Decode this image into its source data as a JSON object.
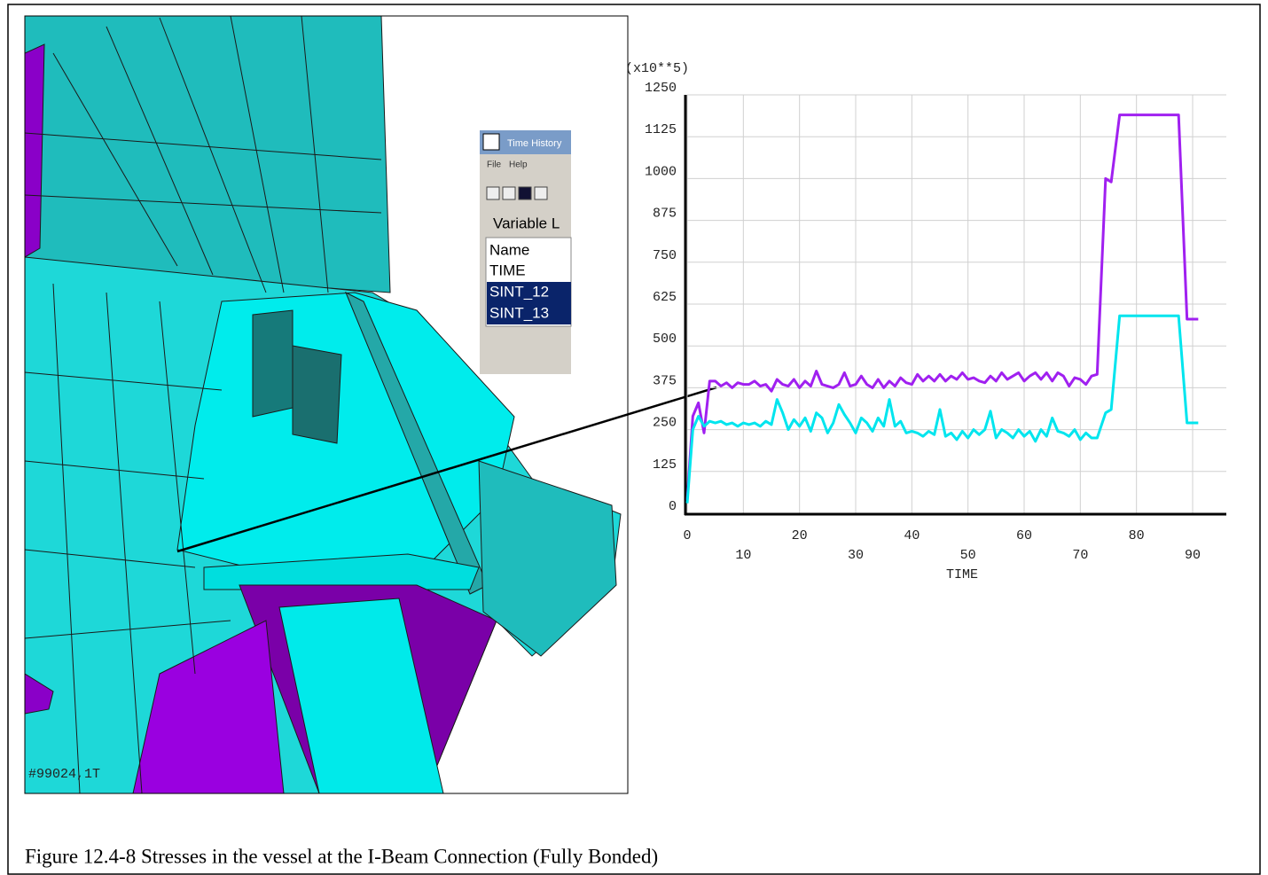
{
  "chart_data": {
    "type": "line",
    "ylabel": "(x10**5)",
    "xlabel": "TIME",
    "xlim": [
      0,
      96
    ],
    "xticks": [
      0,
      10,
      20,
      30,
      40,
      50,
      60,
      70,
      80,
      90
    ],
    "ylim": [
      0,
      1250
    ],
    "yticks": [
      0,
      125,
      250,
      375,
      500,
      625,
      750,
      875,
      1000,
      1125,
      1250
    ],
    "grid": true,
    "x": [
      0,
      1,
      2,
      3,
      4,
      5,
      6,
      7,
      8,
      9,
      10,
      11,
      12,
      13,
      14,
      15,
      16,
      17,
      18,
      19,
      20,
      21,
      22,
      23,
      24,
      25,
      26,
      27,
      28,
      29,
      30,
      31,
      32,
      33,
      34,
      35,
      36,
      37,
      38,
      39,
      40,
      41,
      42,
      43,
      44,
      45,
      46,
      47,
      48,
      49,
      50,
      51,
      52,
      53,
      54,
      55,
      56,
      57,
      58,
      59,
      60,
      61,
      62,
      63,
      64,
      65,
      66,
      67,
      68,
      69,
      70,
      71,
      72,
      73,
      74.5,
      75.5,
      77,
      87.5,
      89,
      91
    ],
    "series": [
      {
        "color": "#a020f0",
        "values": [
          40,
          290,
          330,
          240,
          395,
          395,
          380,
          390,
          375,
          390,
          385,
          385,
          395,
          380,
          385,
          365,
          400,
          385,
          380,
          400,
          375,
          395,
          380,
          425,
          385,
          380,
          375,
          385,
          420,
          380,
          385,
          410,
          385,
          375,
          400,
          375,
          395,
          380,
          405,
          390,
          385,
          415,
          395,
          410,
          395,
          415,
          395,
          410,
          400,
          420,
          400,
          405,
          395,
          390,
          410,
          395,
          420,
          400,
          410,
          420,
          395,
          410,
          420,
          400,
          420,
          395,
          420,
          410,
          380,
          405,
          400,
          385,
          410,
          415,
          1000,
          990,
          1190,
          1190,
          580,
          580
        ]
      },
      {
        "color": "#00e5ee",
        "values": [
          30,
          250,
          290,
          260,
          275,
          270,
          275,
          265,
          270,
          260,
          270,
          265,
          270,
          260,
          275,
          265,
          340,
          300,
          250,
          280,
          260,
          285,
          245,
          300,
          285,
          240,
          270,
          325,
          295,
          270,
          240,
          285,
          270,
          245,
          285,
          260,
          340,
          260,
          275,
          240,
          245,
          240,
          230,
          245,
          235,
          310,
          230,
          240,
          220,
          245,
          225,
          250,
          235,
          250,
          305,
          225,
          250,
          240,
          225,
          250,
          230,
          245,
          215,
          250,
          230,
          285,
          245,
          240,
          230,
          250,
          220,
          240,
          225,
          225,
          300,
          310,
          590,
          590,
          270,
          270
        ]
      }
    ]
  },
  "mesh_label": "#99024,1T",
  "dialog": {
    "title": "Time History",
    "menu": [
      "File",
      "Help"
    ],
    "tab": "Variable L",
    "header": "Name",
    "rows": [
      "TIME",
      "SINT_12",
      "SINT_13"
    ]
  },
  "caption": "Figure 12.4-8 Stresses in the vessel at the I-Beam Connection (Fully Bonded)"
}
